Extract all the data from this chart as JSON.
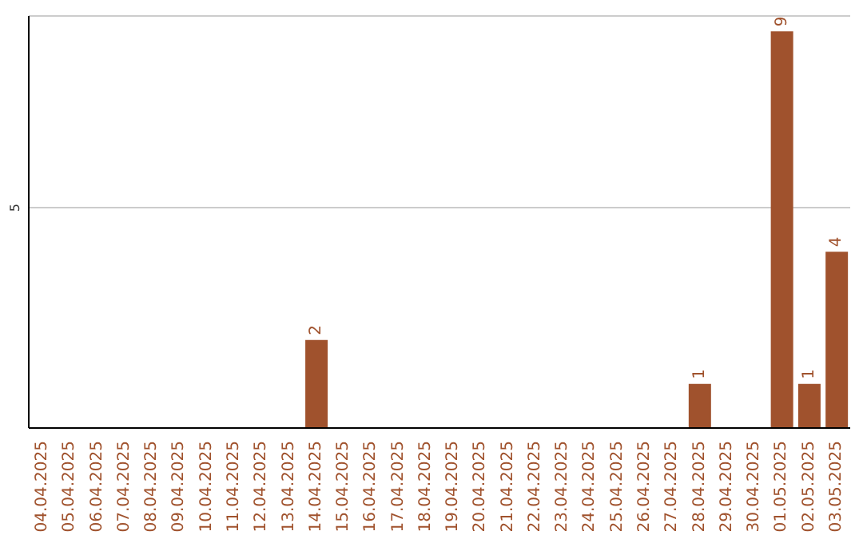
{
  "chart_data": {
    "type": "bar",
    "categories": [
      "04.04.2025",
      "05.04.2025",
      "06.04.2025",
      "07.04.2025",
      "08.04.2025",
      "09.04.2025",
      "10.04.2025",
      "11.04.2025",
      "12.04.2025",
      "13.04.2025",
      "14.04.2025",
      "15.04.2025",
      "16.04.2025",
      "17.04.2025",
      "18.04.2025",
      "19.04.2025",
      "20.04.2025",
      "21.04.2025",
      "22.04.2025",
      "23.04.2025",
      "24.04.2025",
      "25.04.2025",
      "26.04.2025",
      "27.04.2025",
      "28.04.2025",
      "29.04.2025",
      "30.04.2025",
      "01.05.2025",
      "02.05.2025",
      "03.05.2025"
    ],
    "values": [
      0,
      0,
      0,
      0,
      0,
      0,
      0,
      0,
      0,
      0,
      2,
      0,
      0,
      0,
      0,
      0,
      0,
      0,
      0,
      0,
      0,
      0,
      0,
      0,
      1,
      0,
      0,
      9,
      1,
      4
    ],
    "value_labels": [
      null,
      null,
      null,
      null,
      null,
      null,
      null,
      null,
      null,
      null,
      "2",
      null,
      null,
      null,
      null,
      null,
      null,
      null,
      null,
      null,
      null,
      null,
      null,
      null,
      "1",
      null,
      null,
      "9",
      "1",
      "4"
    ],
    "color": "#a0522d",
    "ylim": [
      0,
      9.35
    ],
    "yticks": [
      5
    ],
    "grid": "y"
  }
}
